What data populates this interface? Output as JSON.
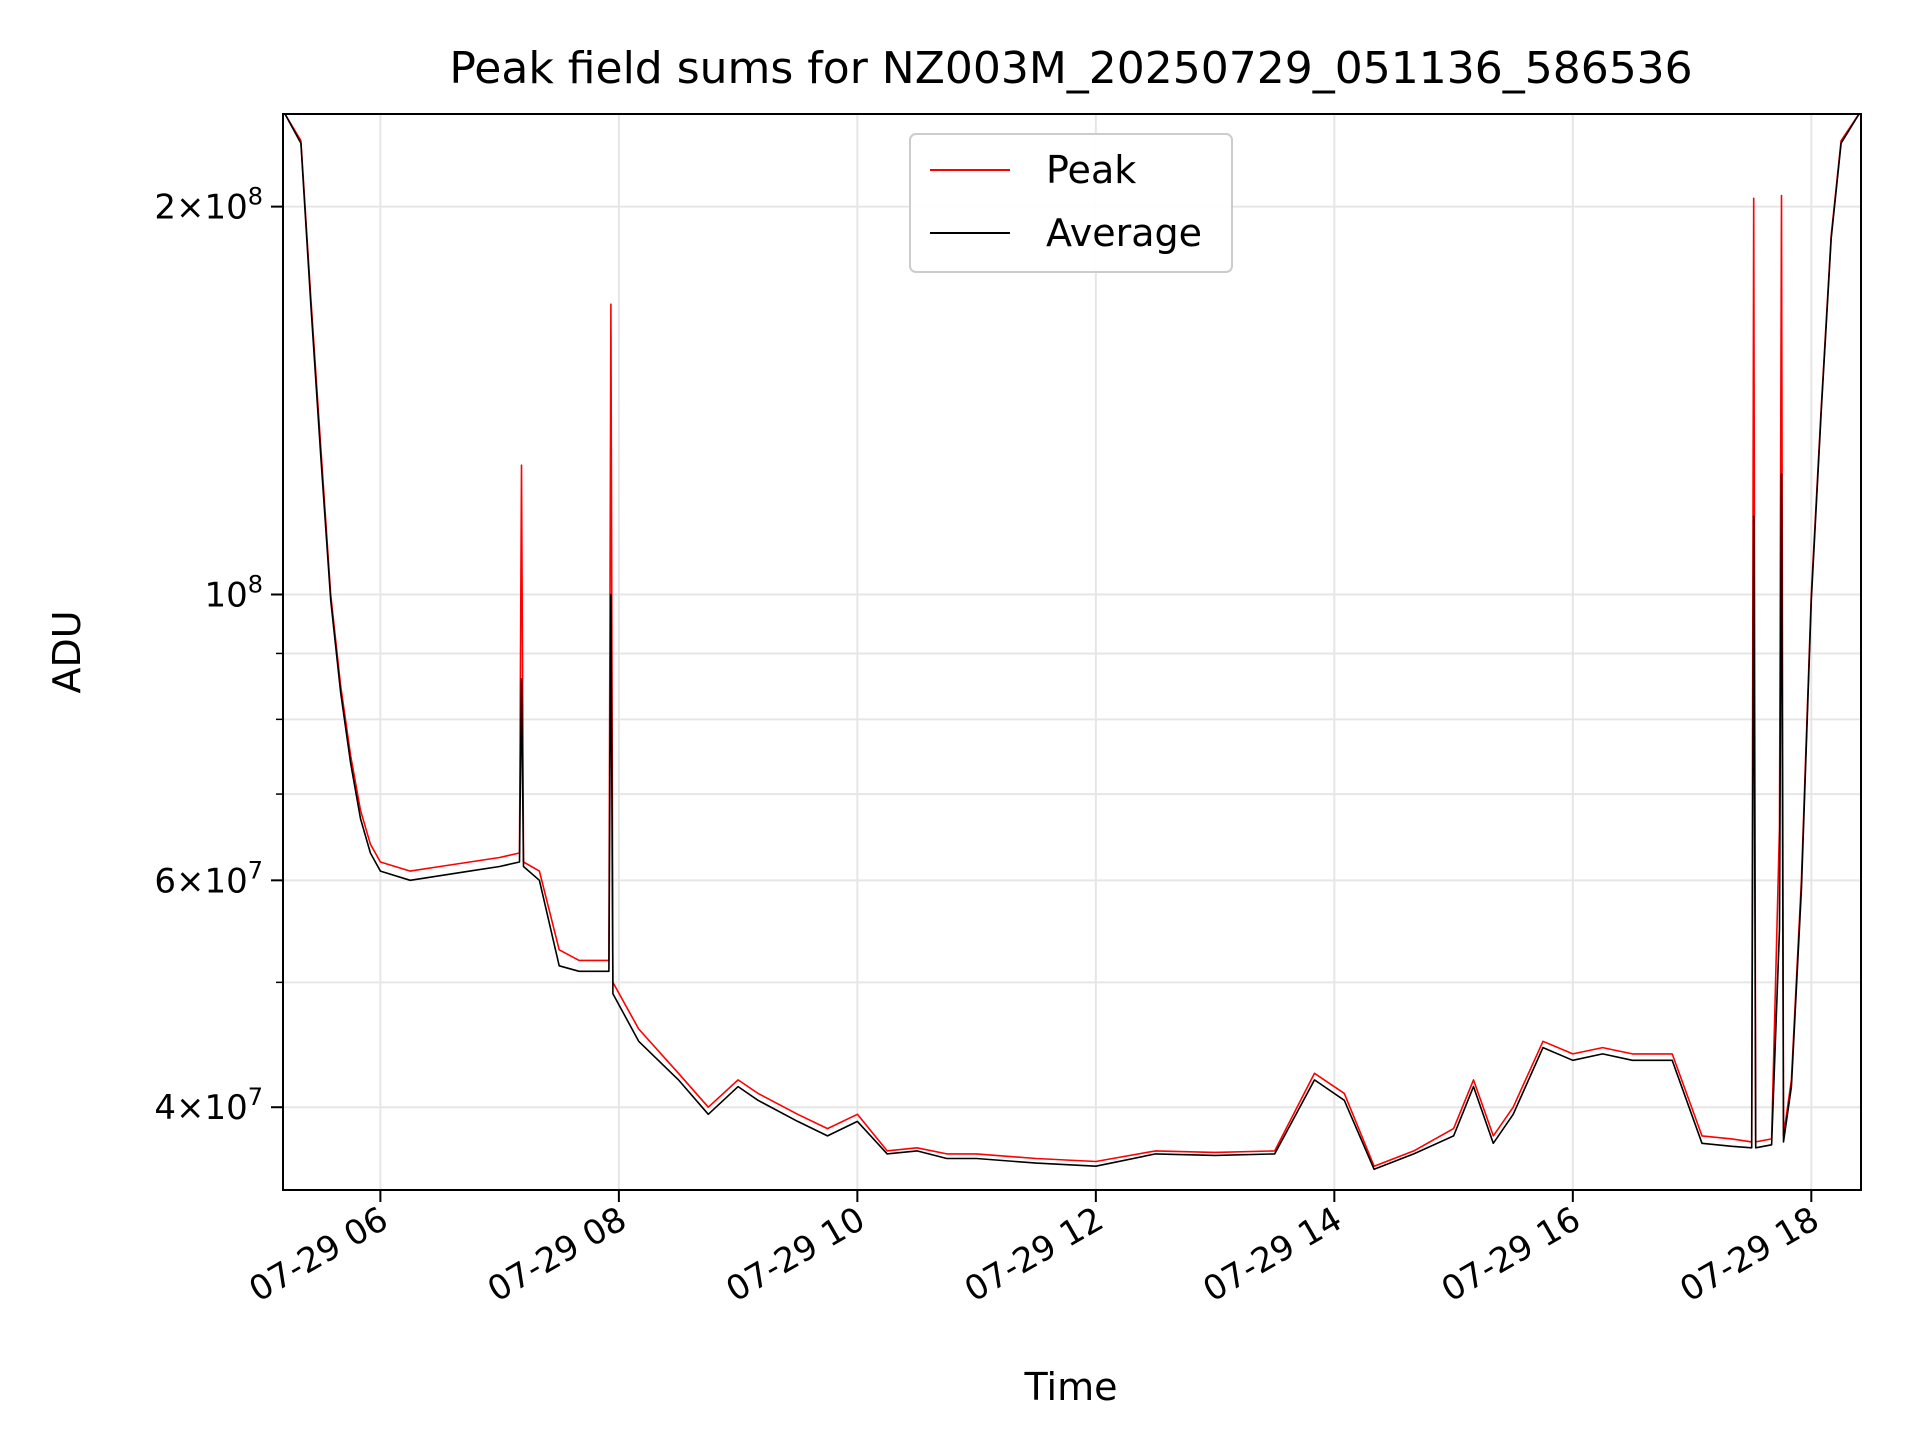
{
  "chart_data": {
    "type": "line",
    "title": "Peak field sums for NZ003M_20250729_051136_586536",
    "xlabel": "Time",
    "ylabel": "ADU",
    "yscale": "log",
    "grid": true,
    "legend_position": "top-center",
    "xlim": [
      "2025-07-29 05:11",
      "2025-07-29 18:25"
    ],
    "ylim": [
      34500000,
      236000000
    ],
    "x_ticks": [
      {
        "value": "2025-07-29 06:00",
        "label": "07-29 06"
      },
      {
        "value": "2025-07-29 08:00",
        "label": "07-29 08"
      },
      {
        "value": "2025-07-29 10:00",
        "label": "07-29 10"
      },
      {
        "value": "2025-07-29 12:00",
        "label": "07-29 12"
      },
      {
        "value": "2025-07-29 14:00",
        "label": "07-29 14"
      },
      {
        "value": "2025-07-29 16:00",
        "label": "07-29 16"
      },
      {
        "value": "2025-07-29 18:00",
        "label": "07-29 18"
      }
    ],
    "y_ticks": [
      {
        "value": 40000000,
        "mant": "4",
        "exp": "7"
      },
      {
        "value": 60000000,
        "mant": "6",
        "exp": "7"
      },
      {
        "value": 100000000,
        "mant": "",
        "exp": "8"
      },
      {
        "value": 200000000,
        "mant": "2",
        "exp": "8"
      }
    ],
    "y_minor_ticks": [
      50000000,
      70000000,
      80000000,
      90000000
    ],
    "series": [
      {
        "name": "Peak",
        "color": "#ff0000",
        "x": [
          "2025-07-29 05:12",
          "2025-07-29 05:20",
          "2025-07-29 05:25",
          "2025-07-29 05:30",
          "2025-07-29 05:35",
          "2025-07-29 05:40",
          "2025-07-29 05:45",
          "2025-07-29 05:50",
          "2025-07-29 05:55",
          "2025-07-29 06:00",
          "2025-07-29 06:15",
          "2025-07-29 06:30",
          "2025-07-29 06:45",
          "2025-07-29 07:00",
          "2025-07-29 07:10",
          "2025-07-29 07:11",
          "2025-07-29 07:12",
          "2025-07-29 07:20",
          "2025-07-29 07:30",
          "2025-07-29 07:40",
          "2025-07-29 07:55",
          "2025-07-29 07:56",
          "2025-07-29 07:57",
          "2025-07-29 08:10",
          "2025-07-29 08:30",
          "2025-07-29 08:45",
          "2025-07-29 09:00",
          "2025-07-29 09:10",
          "2025-07-29 09:30",
          "2025-07-29 09:45",
          "2025-07-29 10:00",
          "2025-07-29 10:15",
          "2025-07-29 10:30",
          "2025-07-29 10:45",
          "2025-07-29 11:00",
          "2025-07-29 11:30",
          "2025-07-29 12:00",
          "2025-07-29 12:30",
          "2025-07-29 13:00",
          "2025-07-29 13:30",
          "2025-07-29 13:50",
          "2025-07-29 14:05",
          "2025-07-29 14:20",
          "2025-07-29 14:40",
          "2025-07-29 15:00",
          "2025-07-29 15:10",
          "2025-07-29 15:20",
          "2025-07-29 15:30",
          "2025-07-29 15:45",
          "2025-07-29 16:00",
          "2025-07-29 16:15",
          "2025-07-29 16:30",
          "2025-07-29 16:50",
          "2025-07-29 17:05",
          "2025-07-29 17:20",
          "2025-07-29 17:30",
          "2025-07-29 17:31",
          "2025-07-29 17:32",
          "2025-07-29 17:40",
          "2025-07-29 17:44",
          "2025-07-29 17:45",
          "2025-07-29 17:46",
          "2025-07-29 17:50",
          "2025-07-29 17:55",
          "2025-07-29 18:00",
          "2025-07-29 18:05",
          "2025-07-29 18:10",
          "2025-07-29 18:15",
          "2025-07-29 18:24"
        ],
        "values": [
          236000000,
          225000000,
          170000000,
          130000000,
          100000000,
          85000000,
          75000000,
          68000000,
          64000000,
          62000000,
          61000000,
          61500000,
          62000000,
          62500000,
          63000000,
          126000000,
          62000000,
          61000000,
          53000000,
          52000000,
          52000000,
          168000000,
          50000000,
          46000000,
          42500000,
          40000000,
          42000000,
          41000000,
          39500000,
          38500000,
          39500000,
          37000000,
          37200000,
          36800000,
          36800000,
          36500000,
          36300000,
          37000000,
          36900000,
          37000000,
          42500000,
          41000000,
          36000000,
          37000000,
          38500000,
          42000000,
          38000000,
          40000000,
          45000000,
          44000000,
          44500000,
          44000000,
          44000000,
          38000000,
          37800000,
          37600000,
          203000000,
          37600000,
          37800000,
          66000000,
          204000000,
          38000000,
          42000000,
          60000000,
          100000000,
          140000000,
          190000000,
          225000000,
          236000000
        ]
      },
      {
        "name": "Average",
        "color": "#000000",
        "x": [
          "2025-07-29 05:12",
          "2025-07-29 05:20",
          "2025-07-29 05:25",
          "2025-07-29 05:30",
          "2025-07-29 05:35",
          "2025-07-29 05:40",
          "2025-07-29 05:45",
          "2025-07-29 05:50",
          "2025-07-29 05:55",
          "2025-07-29 06:00",
          "2025-07-29 06:15",
          "2025-07-29 06:30",
          "2025-07-29 06:45",
          "2025-07-29 07:00",
          "2025-07-29 07:10",
          "2025-07-29 07:11",
          "2025-07-29 07:12",
          "2025-07-29 07:20",
          "2025-07-29 07:30",
          "2025-07-29 07:40",
          "2025-07-29 07:55",
          "2025-07-29 07:56",
          "2025-07-29 07:57",
          "2025-07-29 08:10",
          "2025-07-29 08:30",
          "2025-07-29 08:45",
          "2025-07-29 09:00",
          "2025-07-29 09:10",
          "2025-07-29 09:30",
          "2025-07-29 09:45",
          "2025-07-29 10:00",
          "2025-07-29 10:15",
          "2025-07-29 10:30",
          "2025-07-29 10:45",
          "2025-07-29 11:00",
          "2025-07-29 11:30",
          "2025-07-29 12:00",
          "2025-07-29 12:30",
          "2025-07-29 13:00",
          "2025-07-29 13:30",
          "2025-07-29 13:50",
          "2025-07-29 14:05",
          "2025-07-29 14:20",
          "2025-07-29 14:40",
          "2025-07-29 15:00",
          "2025-07-29 15:10",
          "2025-07-29 15:20",
          "2025-07-29 15:30",
          "2025-07-29 15:45",
          "2025-07-29 16:00",
          "2025-07-29 16:15",
          "2025-07-29 16:30",
          "2025-07-29 16:50",
          "2025-07-29 17:05",
          "2025-07-29 17:20",
          "2025-07-29 17:30",
          "2025-07-29 17:31",
          "2025-07-29 17:32",
          "2025-07-29 17:40",
          "2025-07-29 17:44",
          "2025-07-29 17:45",
          "2025-07-29 17:46",
          "2025-07-29 17:50",
          "2025-07-29 17:55",
          "2025-07-29 18:00",
          "2025-07-29 18:05",
          "2025-07-29 18:10",
          "2025-07-29 18:15",
          "2025-07-29 18:24"
        ],
        "values": [
          236000000,
          224000000,
          168000000,
          128000000,
          99000000,
          84000000,
          74000000,
          67000000,
          63000000,
          61000000,
          60000000,
          60500000,
          61000000,
          61500000,
          62000000,
          86000000,
          61500000,
          60000000,
          51500000,
          51000000,
          51000000,
          100000000,
          49000000,
          45000000,
          42000000,
          39500000,
          41500000,
          40500000,
          39000000,
          38000000,
          39000000,
          36800000,
          37000000,
          36500000,
          36500000,
          36200000,
          36000000,
          36800000,
          36700000,
          36800000,
          42000000,
          40500000,
          35800000,
          36800000,
          38000000,
          41500000,
          37500000,
          39500000,
          44500000,
          43500000,
          44000000,
          43500000,
          43500000,
          37500000,
          37300000,
          37200000,
          115000000,
          37200000,
          37400000,
          55000000,
          124000000,
          37600000,
          41500000,
          59000000,
          99000000,
          139000000,
          189000000,
          224000000,
          236000000
        ]
      }
    ]
  }
}
